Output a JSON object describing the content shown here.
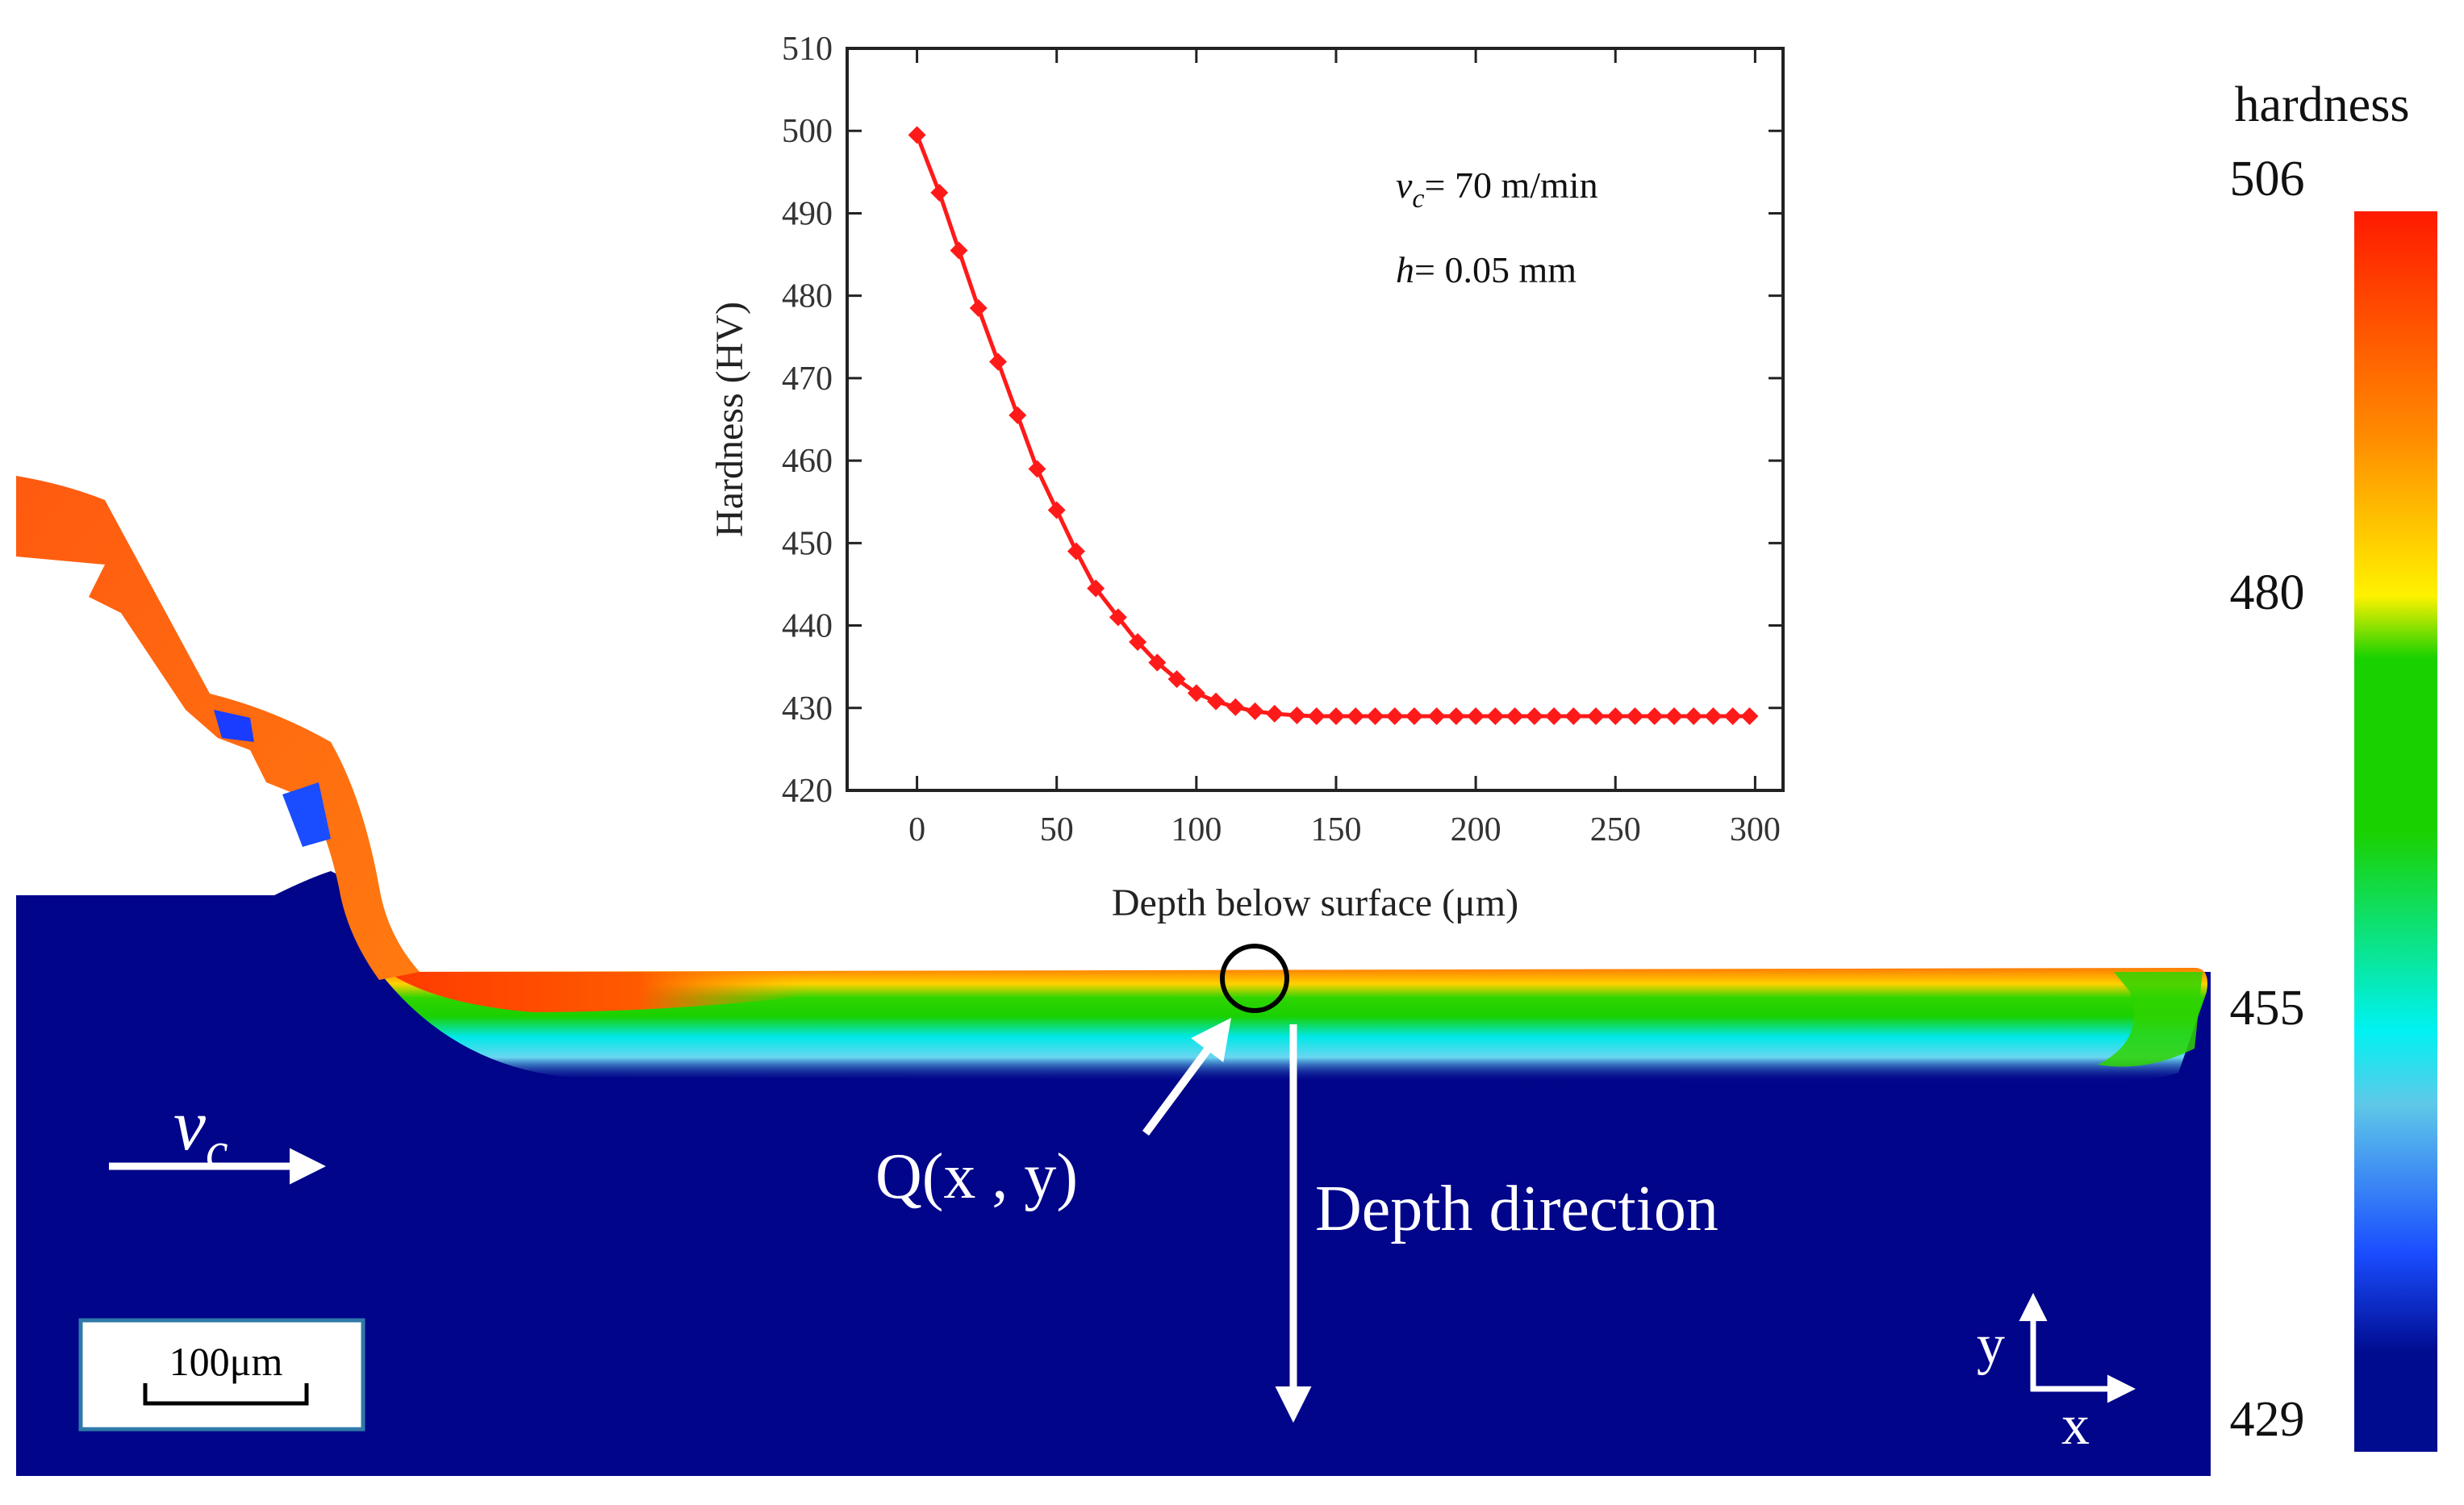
{
  "simulation": {
    "labels": {
      "vc_symbol": "v",
      "vc_subscript": "c",
      "point": "Q(x , y)",
      "depth_direction": "Depth direction",
      "scale_bar": "100μm",
      "axis_x": "x",
      "axis_y": "y"
    },
    "colors": {
      "workpiece": "#01058a",
      "arrow": "#ffffff"
    }
  },
  "colorbar": {
    "title": "hardness",
    "ticks": [
      "506",
      "480",
      "455",
      "429"
    ],
    "range": [
      429,
      506
    ],
    "colors": [
      "#ff1a00",
      "#ff8a00",
      "#fff200",
      "#1ad100",
      "#00f2f2",
      "#1a4dff",
      "#000c8f"
    ]
  },
  "chart_data": {
    "type": "line",
    "xlabel": "Depth below surface (μm)",
    "ylabel": "Hardness (HV)",
    "xlim": [
      -25,
      310
    ],
    "ylim": [
      420,
      510
    ],
    "xticks": [
      0,
      50,
      100,
      150,
      200,
      250,
      300
    ],
    "yticks": [
      420,
      430,
      440,
      450,
      460,
      470,
      480,
      490,
      500,
      510
    ],
    "grid": false,
    "annotations": [
      {
        "symbol": "v",
        "subscript": "c",
        "text": "= 70 m/min"
      },
      {
        "symbol": "h",
        "text": "= 0.05 mm"
      }
    ],
    "series": [
      {
        "color": "#ff1a1a",
        "marker": "diamond",
        "x": [
          0,
          8,
          15,
          22,
          29,
          36,
          43,
          50,
          57,
          64,
          72,
          79,
          86,
          93,
          100,
          107,
          114,
          121,
          128,
          136,
          143,
          150,
          157,
          164,
          171,
          178,
          186,
          193,
          200,
          207,
          214,
          221,
          228,
          235,
          243,
          250,
          257,
          264,
          271,
          278,
          285,
          292,
          298
        ],
        "y": [
          499.5,
          492.5,
          485.5,
          478.5,
          472.0,
          465.5,
          459.0,
          454.0,
          449.0,
          444.5,
          441.0,
          438.0,
          435.5,
          433.5,
          431.8,
          430.8,
          430.1,
          429.6,
          429.3,
          429.1,
          429.0,
          429.0,
          429.0,
          429.0,
          429.0,
          429.0,
          429.0,
          429.0,
          429.0,
          429.0,
          429.0,
          429.0,
          429.0,
          429.0,
          429.0,
          429.0,
          429.0,
          429.0,
          429.0,
          429.0,
          429.0,
          429.0,
          429.0
        ]
      }
    ]
  }
}
